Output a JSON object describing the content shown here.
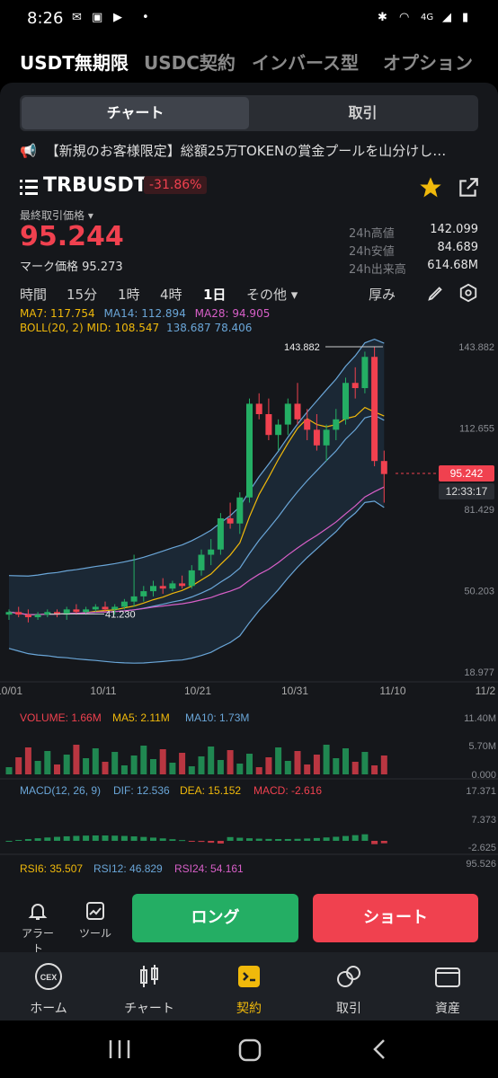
{
  "status": {
    "time": "8:26",
    "net": "4G"
  },
  "top_tabs": [
    "USDT無期限",
    "USDC契約",
    "インバース型",
    "オプション"
  ],
  "segment": {
    "chart": "チャート",
    "trade": "取引"
  },
  "banner": "【新規のお客様限定】総額25万TOKENの賞金プールを山分けし…",
  "symbol": {
    "name": "TRBUSDT",
    "change": "-31.86%"
  },
  "last_price_label": "最終取引価格",
  "last_price": "95.244",
  "mark_price": "マーク価格 95.273",
  "stats": [
    {
      "k": "24h高値",
      "v": "142.099"
    },
    {
      "k": "24h安値",
      "v": "84.689"
    },
    {
      "k": "24h出来高",
      "v": "614.68M"
    }
  ],
  "intervals": [
    "時間",
    "15分",
    "1時",
    "4時",
    "1日",
    "その他"
  ],
  "depth_label": "厚み",
  "ma_legend": {
    "ma7": "MA7: 117.754",
    "ma14": "MA14: 112.894",
    "ma28": "MA28: 94.905"
  },
  "boll_legend": {
    "mid": "BOLL(20, 2) MID: 108.547",
    "rest": "138.687 78.406"
  },
  "chart_data": {
    "type": "candlestick",
    "y_ticks": [
      "143.882",
      "112.655",
      "81.429",
      "50.203",
      "18.977"
    ],
    "x_ticks": [
      "10/01",
      "10/11",
      "10/21",
      "10/31",
      "11/10",
      "11/2"
    ],
    "high_label": "143.882",
    "low_label": "41.230",
    "current_price": "95.242",
    "countdown": "12:33:17",
    "candles": [
      [
        41,
        43,
        39,
        42
      ],
      [
        42,
        44,
        40,
        41
      ],
      [
        41,
        43,
        38,
        40
      ],
      [
        40,
        42,
        39,
        41
      ],
      [
        41,
        43,
        40,
        42
      ],
      [
        42,
        43,
        40,
        41
      ],
      [
        41,
        44,
        39,
        43
      ],
      [
        43,
        45,
        41,
        42
      ],
      [
        42,
        44,
        41,
        43
      ],
      [
        43,
        45,
        42,
        44
      ],
      [
        44,
        46,
        42,
        43
      ],
      [
        43,
        45,
        41,
        44
      ],
      [
        44,
        47,
        43,
        46
      ],
      [
        46,
        64,
        44,
        48
      ],
      [
        48,
        52,
        46,
        50
      ],
      [
        50,
        54,
        48,
        52
      ],
      [
        52,
        55,
        49,
        51
      ],
      [
        51,
        54,
        50,
        53
      ],
      [
        53,
        56,
        51,
        52
      ],
      [
        52,
        60,
        51,
        58
      ],
      [
        58,
        66,
        56,
        64
      ],
      [
        64,
        70,
        60,
        66
      ],
      [
        66,
        80,
        64,
        78
      ],
      [
        78,
        84,
        74,
        76
      ],
      [
        76,
        88,
        72,
        86
      ],
      [
        86,
        124,
        84,
        122
      ],
      [
        122,
        126,
        116,
        118
      ],
      [
        118,
        124,
        108,
        110
      ],
      [
        110,
        116,
        104,
        114
      ],
      [
        114,
        124,
        110,
        122
      ],
      [
        122,
        130,
        114,
        116
      ],
      [
        116,
        120,
        108,
        112
      ],
      [
        112,
        118,
        104,
        106
      ],
      [
        106,
        114,
        100,
        112
      ],
      [
        112,
        120,
        108,
        116
      ],
      [
        116,
        132,
        114,
        130
      ],
      [
        130,
        136,
        124,
        128
      ],
      [
        128,
        142,
        126,
        140
      ],
      [
        140,
        144,
        98,
        100
      ],
      [
        100,
        104,
        84,
        95
      ]
    ],
    "volume_legend": {
      "vol": "VOLUME: 1.66M",
      "ma5": "MA5: 2.11M",
      "ma10": "MA10: 1.73M"
    },
    "volume_ticks": [
      "11.40M",
      "5.70M",
      "0.000"
    ],
    "macd_legend": {
      "p": "MACD(12, 26, 9)",
      "dif": "DIF: 12.536",
      "dea": "DEA: 15.152",
      "macd": "MACD: -2.616"
    },
    "macd_ticks": [
      "17.371",
      "7.373",
      "-2.625"
    ],
    "rsi_legend": {
      "r6": "RSI6: 35.507",
      "r12": "RSI12: 46.829",
      "r24": "RSI24: 54.161"
    },
    "rsi_tick": "95.526"
  },
  "action": {
    "alert": "アラート",
    "tool": "ツール",
    "long": "ロング",
    "short": "ショート"
  },
  "nav": [
    "ホーム",
    "チャート",
    "契約",
    "取引",
    "資産"
  ],
  "colors": {
    "up": "#24ae64",
    "down": "#f0414f",
    "accent": "#f0b90b"
  }
}
